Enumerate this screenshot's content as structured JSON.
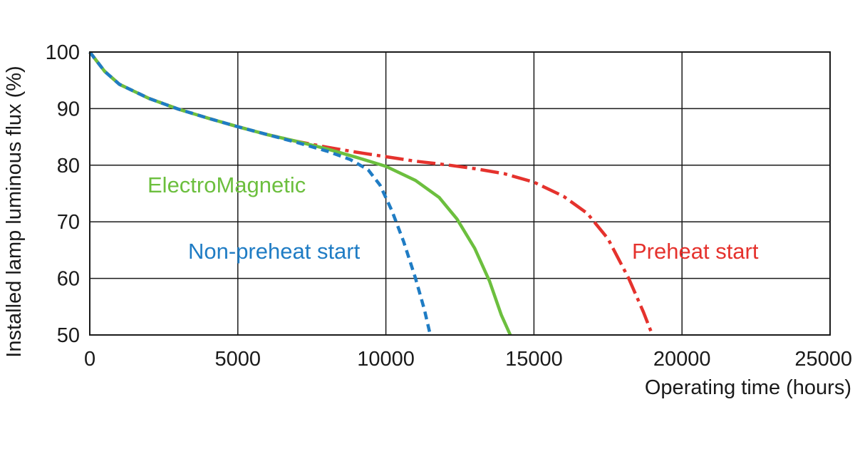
{
  "chart_data": {
    "type": "line",
    "title": "",
    "xlabel": "Operating time (hours)",
    "ylabel": "Installed lamp luminous flux  (%)",
    "xlim": [
      0,
      25000
    ],
    "ylim": [
      50,
      100
    ],
    "xticks": [
      "0",
      "5000",
      "10000",
      "15000",
      "20000",
      "25000"
    ],
    "yticks": [
      "50",
      "60",
      "70",
      "80",
      "90",
      "100"
    ],
    "grid": true,
    "legend": "inline-labels",
    "series": [
      {
        "name": "Preheat start",
        "color": "#e5322d",
        "style": "dash-dot",
        "points": [
          [
            0,
            100
          ],
          [
            250,
            98.3
          ],
          [
            500,
            96.6
          ],
          [
            1000,
            94.3
          ],
          [
            2000,
            91.8
          ],
          [
            3000,
            89.9
          ],
          [
            4000,
            88.3
          ],
          [
            5000,
            86.8
          ],
          [
            6000,
            85.4
          ],
          [
            7000,
            84.2
          ],
          [
            8000,
            83.2
          ],
          [
            9000,
            82.3
          ],
          [
            10000,
            81.5
          ],
          [
            11000,
            80.7
          ],
          [
            12000,
            80.1
          ],
          [
            13000,
            79.4
          ],
          [
            14000,
            78.5
          ],
          [
            15000,
            77.0
          ],
          [
            16000,
            74.5
          ],
          [
            16800,
            71.5
          ],
          [
            17500,
            67.0
          ],
          [
            18200,
            60.0
          ],
          [
            18700,
            54.0
          ],
          [
            19000,
            50.0
          ]
        ]
      },
      {
        "name": "ElectroMagnetic",
        "color": "#6cbf3e",
        "style": "solid",
        "points": [
          [
            0,
            100
          ],
          [
            250,
            98.3
          ],
          [
            500,
            96.6
          ],
          [
            1000,
            94.3
          ],
          [
            2000,
            91.8
          ],
          [
            3000,
            89.9
          ],
          [
            4000,
            88.3
          ],
          [
            5000,
            86.8
          ],
          [
            6000,
            85.4
          ],
          [
            7000,
            84.2
          ],
          [
            8000,
            82.9
          ],
          [
            9000,
            81.4
          ],
          [
            10000,
            79.8
          ],
          [
            11000,
            77.3
          ],
          [
            11800,
            74.3
          ],
          [
            12400,
            70.5
          ],
          [
            13000,
            65.3
          ],
          [
            13500,
            59.5
          ],
          [
            13900,
            53.5
          ],
          [
            14200,
            50.0
          ]
        ]
      },
      {
        "name": "Non-preheat start",
        "color": "#1f7cc4",
        "style": "dashed",
        "points": [
          [
            0,
            100
          ],
          [
            250,
            98.3
          ],
          [
            500,
            96.6
          ],
          [
            1000,
            94.3
          ],
          [
            2000,
            91.8
          ],
          [
            3000,
            89.9
          ],
          [
            4000,
            88.3
          ],
          [
            5000,
            86.8
          ],
          [
            6000,
            85.4
          ],
          [
            7000,
            84.0
          ],
          [
            8000,
            82.5
          ],
          [
            8800,
            81.0
          ],
          [
            9400,
            79.2
          ],
          [
            9800,
            76.5
          ],
          [
            10200,
            72.0
          ],
          [
            10600,
            66.5
          ],
          [
            11000,
            60.0
          ],
          [
            11300,
            54.5
          ],
          [
            11500,
            50.0
          ]
        ]
      }
    ]
  }
}
